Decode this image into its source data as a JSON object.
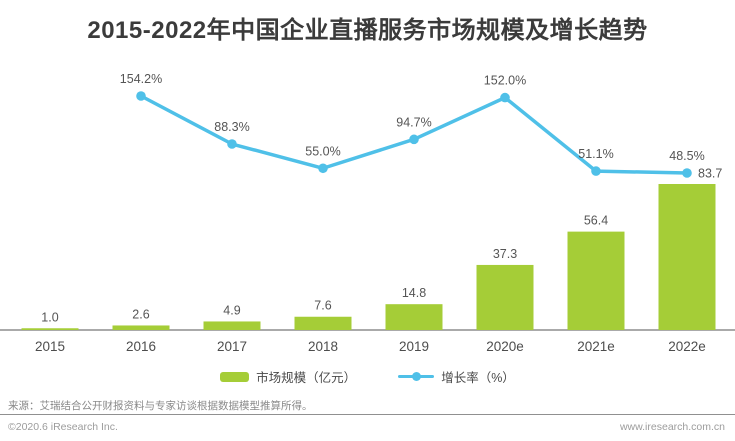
{
  "title": "2015-2022年中国企业直播服务市场规模及增长趋势",
  "chart_data": {
    "type": "bar-line-combo",
    "categories": [
      "2015",
      "2016",
      "2017",
      "2018",
      "2019",
      "2020e",
      "2021e",
      "2022e"
    ],
    "series": [
      {
        "name": "市场规模（亿元）",
        "kind": "bar",
        "values": [
          1.0,
          2.6,
          4.9,
          7.6,
          14.8,
          37.3,
          56.4,
          83.7
        ],
        "labels": [
          "1.0",
          "2.6",
          "4.9",
          "7.6",
          "14.8",
          "37.3",
          "56.4",
          "83.7"
        ],
        "color": "#a5cd37"
      },
      {
        "name": "增长率（%）",
        "kind": "line",
        "values": [
          null,
          154.2,
          88.3,
          55.0,
          94.7,
          152.0,
          51.1,
          48.5
        ],
        "labels": [
          null,
          "154.2%",
          "88.3%",
          "55.0%",
          "94.7%",
          "152.0%",
          "51.1%",
          "48.5%"
        ],
        "color": "#4fc0e8"
      }
    ],
    "xlabel": "",
    "ylabel": "",
    "y_axis_visible": false,
    "gridlines": false,
    "legend_position": "bottom",
    "bar_ylim": [
      0,
      100
    ],
    "line_ylim": [
      0,
      180
    ]
  },
  "legend": {
    "market_label": "市场规模（亿元）",
    "growth_label": "增长率（%）"
  },
  "footer": {
    "source": "来源：艾瑞结合公开财报资料与专家访谈根据数据模型推算所得。",
    "copyright": "©2020.6 iResearch Inc.",
    "website": "www.iresearch.com.cn"
  },
  "colors": {
    "bar": "#a5cd37",
    "line": "#4fc0e8",
    "title": "#3b3b3b",
    "value_label": "#555555",
    "x_label": "#4d4d4d",
    "axis": "#8d8d8d"
  }
}
